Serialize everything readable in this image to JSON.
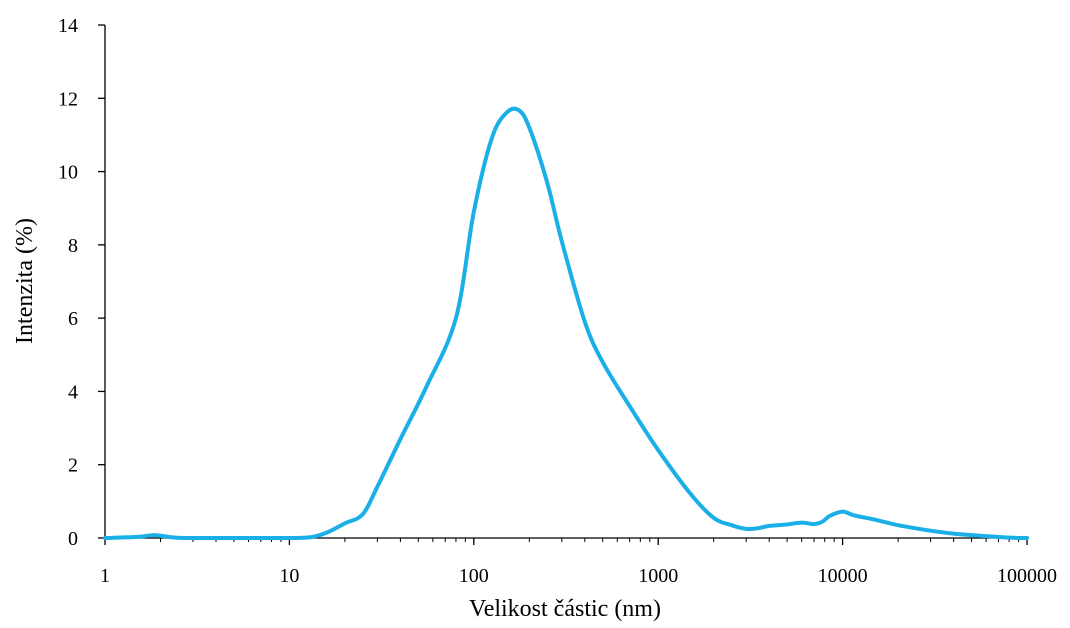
{
  "chart_data": {
    "type": "line",
    "title": "",
    "xlabel": "Velikost částic (nm)",
    "ylabel": "Intenzita (%)",
    "xscale": "log",
    "xlim": [
      1,
      100000
    ],
    "ylim": [
      0,
      14
    ],
    "x_ticks": [
      1,
      10,
      100,
      1000,
      10000,
      100000
    ],
    "x_tick_labels": [
      "1",
      "10",
      "100",
      "1000",
      "10000",
      "100000"
    ],
    "y_ticks": [
      0,
      2,
      4,
      6,
      8,
      10,
      12,
      14
    ],
    "y_tick_labels": [
      "0",
      "2",
      "4",
      "6",
      "8",
      "10",
      "12",
      "14"
    ],
    "grid": false,
    "legend": "none",
    "series": [
      {
        "color": "#1aafe6",
        "x": [
          1,
          1.5,
          1.85,
          2.2,
          2.7,
          5,
          10,
          13,
          16,
          20,
          25,
          30,
          40,
          55,
          80,
          100,
          125,
          150,
          175,
          200,
          250,
          300,
          400,
          500,
          700,
          1000,
          1500,
          2000,
          2500,
          3000,
          3500,
          4000,
          5000,
          6000,
          7000,
          7800,
          8500,
          10000,
          11500,
          15000,
          20000,
          30000,
          40000,
          60000,
          80000,
          100000
        ],
        "y": [
          0,
          0.03,
          0.08,
          0.03,
          0,
          0,
          0,
          0.02,
          0.15,
          0.4,
          0.65,
          1.4,
          2.7,
          4.1,
          6.0,
          8.9,
          10.9,
          11.6,
          11.68,
          11.2,
          9.7,
          8.1,
          5.9,
          4.8,
          3.6,
          2.4,
          1.2,
          0.55,
          0.35,
          0.25,
          0.27,
          0.33,
          0.37,
          0.42,
          0.38,
          0.45,
          0.6,
          0.72,
          0.62,
          0.5,
          0.35,
          0.2,
          0.12,
          0.05,
          0.01,
          0
        ]
      }
    ]
  }
}
